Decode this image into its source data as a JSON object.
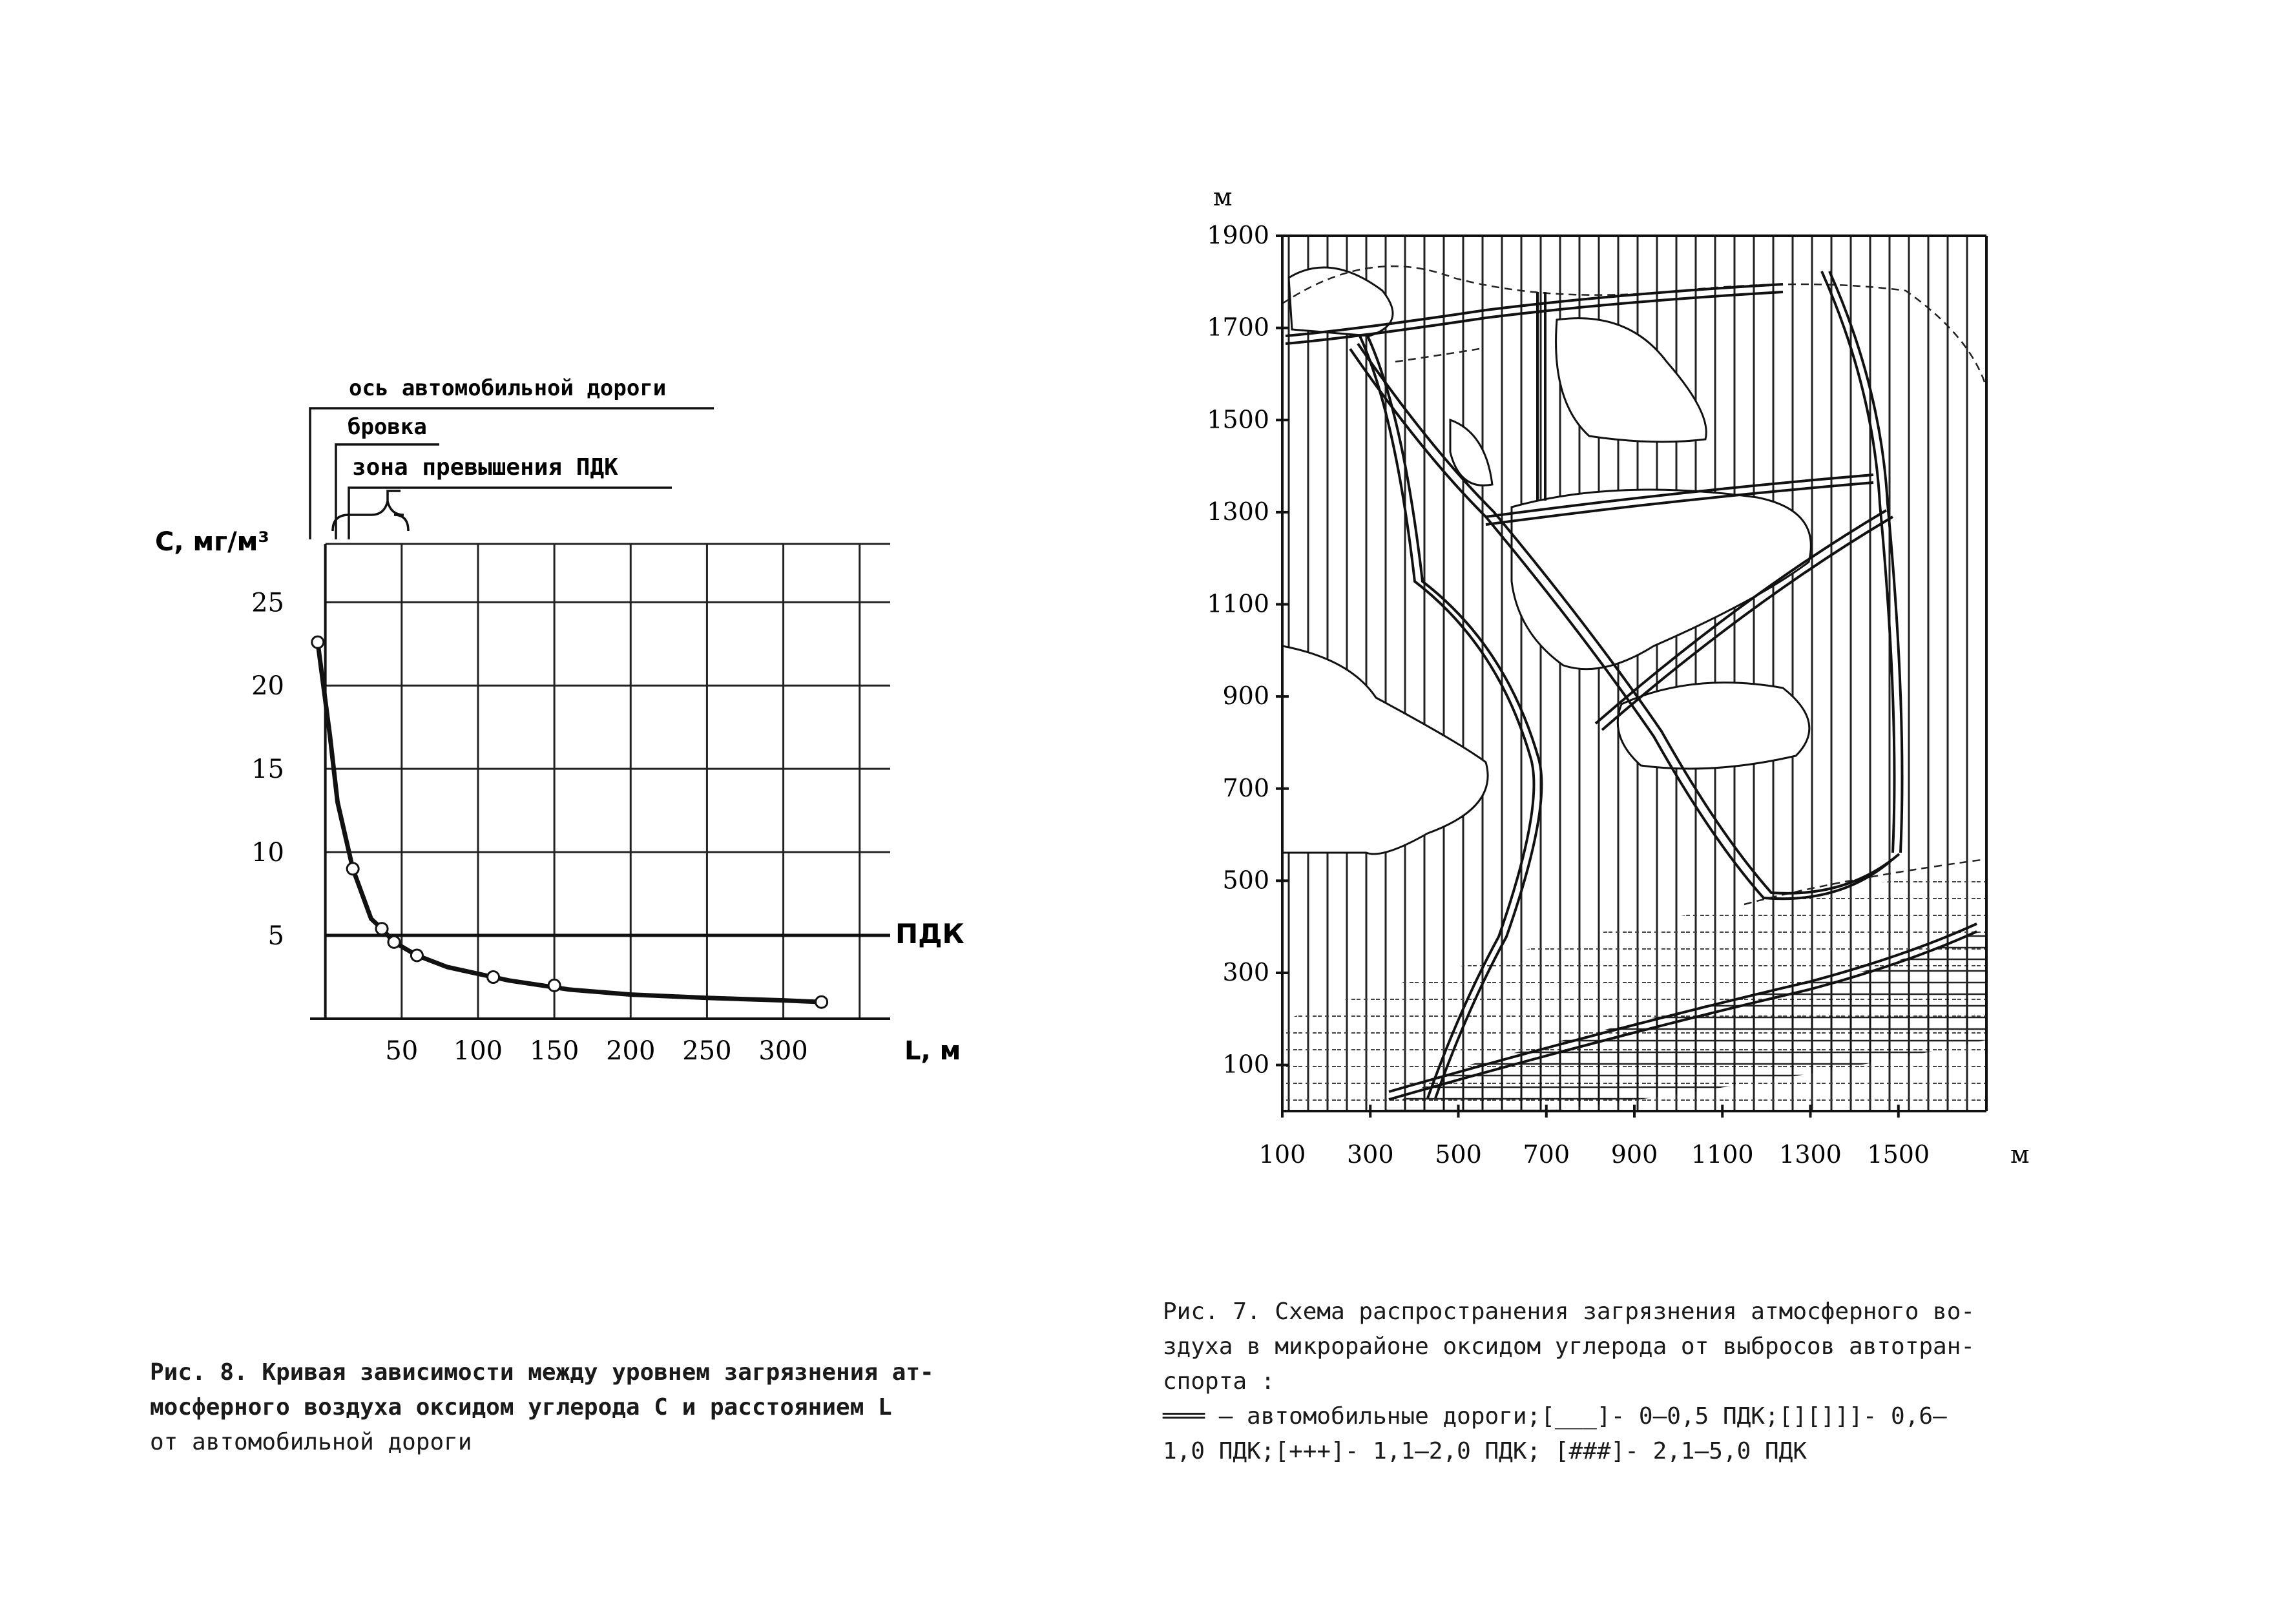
{
  "figure_left": {
    "annotations": {
      "axis_label": "ось автомобильной дороги",
      "edge_label": "бровка",
      "zone_label": "зона превышения ПДК"
    },
    "caption": {
      "line1": "Рис. 8. Кривая зависимости между уровнем загрязнения ат-",
      "line2": "мосферного воздуха оксидом углерода  C  и расстоянием  L",
      "line3": "от автомобильной дороги"
    }
  },
  "figure_right": {
    "caption": {
      "line1": "Рис. 7. Схема распространения загрязнения атмосферного во-",
      "line2": "здуха в микрорайоне оксидом углерода от выбросов автотран-",
      "line3": "спорта :",
      "line4": "═══ – автомобильные дороги;[___]- 0–0,5 ПДК;[][]]]- 0,6–",
      "line5": "1,0 ПДК;[+++]- 1,1–2,0 ПДК; [###]- 2,1–5,0 ПДК"
    }
  },
  "chart_data": [
    {
      "type": "line",
      "xlabel": "L, м",
      "ylabel": "C, мг/м³",
      "x_ticks": [
        "50",
        "100",
        "150",
        "200",
        "250",
        "300"
      ],
      "y_ticks": [
        "5",
        "10",
        "15",
        "20",
        "25"
      ],
      "xlim": [
        -10,
        370
      ],
      "ylim": [
        0,
        28.5
      ],
      "grid": true,
      "threshold": {
        "label": "ПДК",
        "value": 5
      },
      "series": [
        {
          "points": [
            [
              -5,
              22.6
            ],
            [
              3,
              17
            ],
            [
              8,
              13
            ],
            [
              18,
              9
            ],
            [
              30,
              6
            ],
            [
              37,
              5.4
            ],
            [
              45,
              4.6
            ],
            [
              60,
              3.8
            ],
            [
              80,
              3.1
            ],
            [
              100,
              2.7
            ],
            [
              120,
              2.3
            ],
            [
              160,
              1.75
            ],
            [
              200,
              1.45
            ],
            [
              250,
              1.25
            ],
            [
              300,
              1.1
            ],
            [
              325,
              1.0
            ]
          ],
          "markers": [
            [
              -5,
              22.6
            ],
            [
              18,
              9
            ],
            [
              37,
              5.4
            ],
            [
              45,
              4.6
            ],
            [
              60,
              3.8
            ],
            [
              110,
              2.5
            ],
            [
              150,
              2.0
            ],
            [
              325,
              1.0
            ]
          ]
        }
      ]
    },
    {
      "type": "map",
      "xlabel": "м",
      "ylabel": "м",
      "x_ticks": [
        "100",
        "300",
        "500",
        "700",
        "900",
        "1100",
        "1300",
        "1500"
      ],
      "y_ticks": [
        "100",
        "300",
        "500",
        "700",
        "900",
        "1100",
        "1300",
        "1500",
        "1700",
        "1900"
      ],
      "xlim": [
        100,
        1700
      ],
      "ylim": [
        0,
        1900
      ]
    }
  ]
}
